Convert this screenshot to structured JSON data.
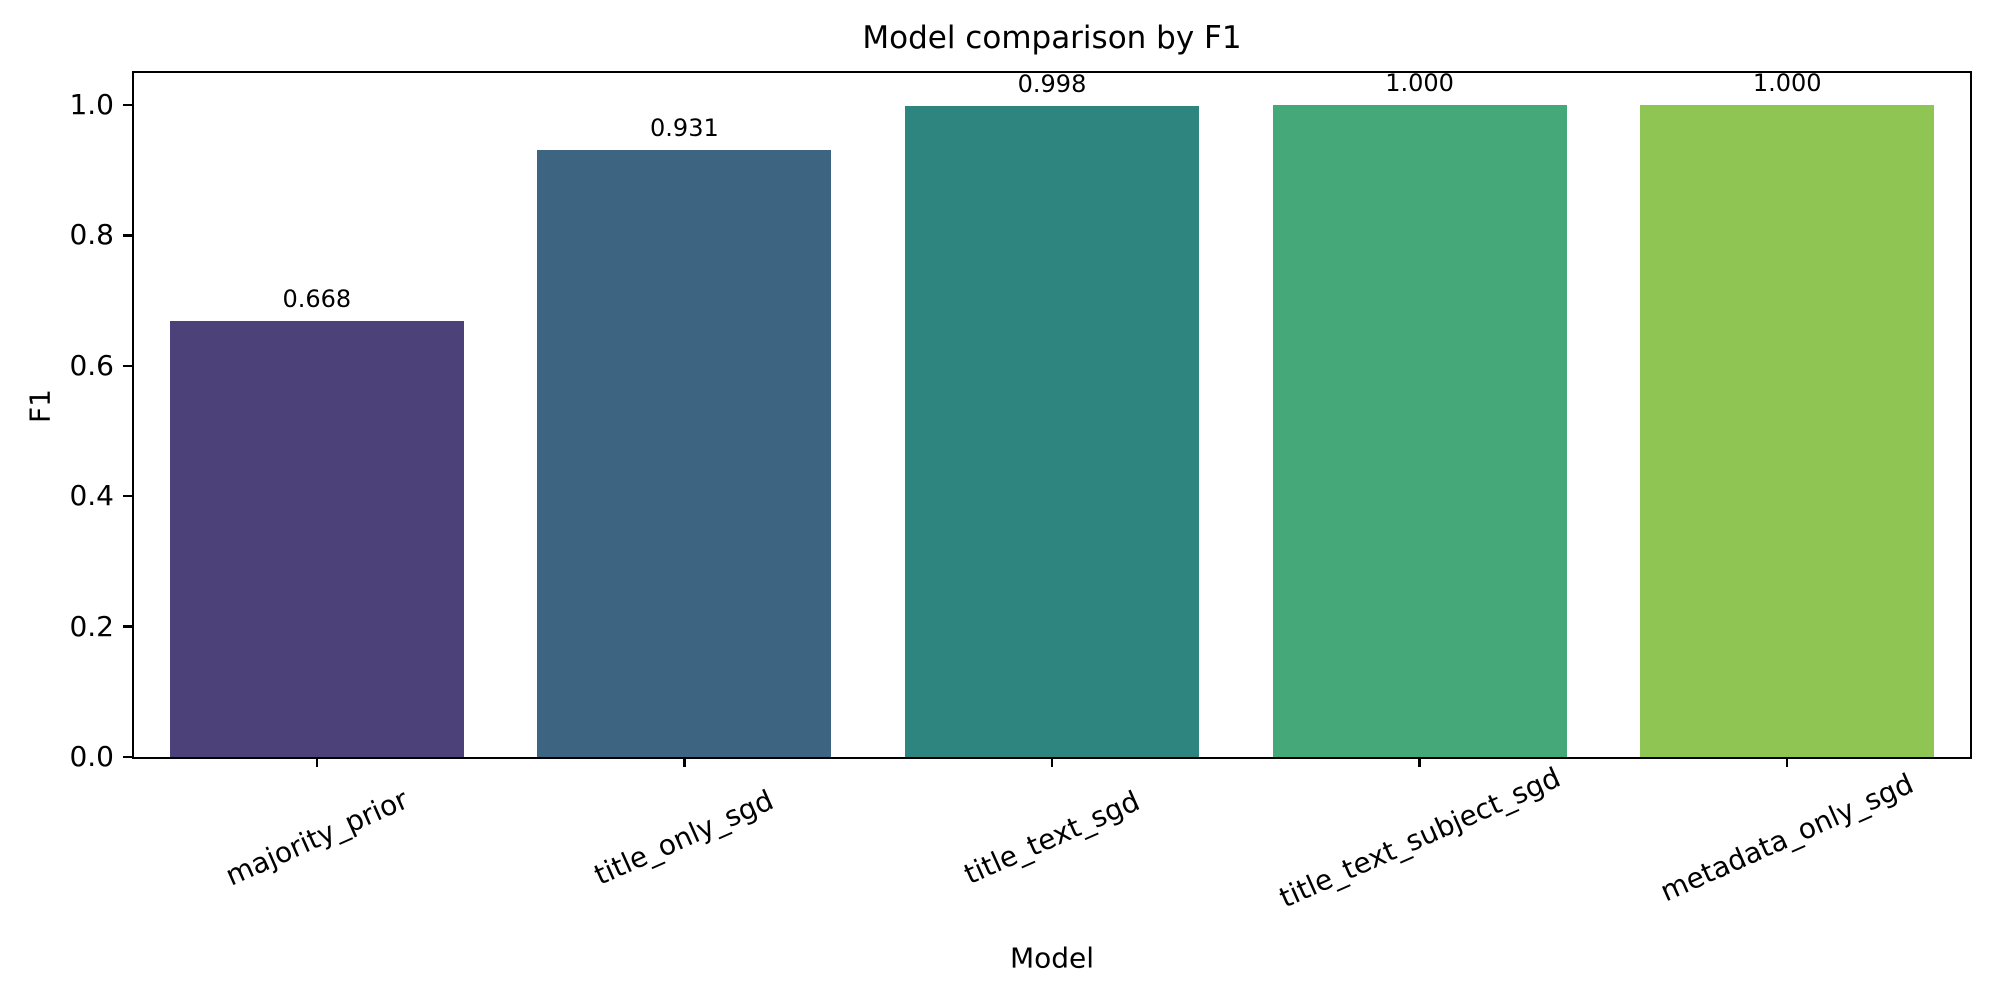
{
  "title": "Model comparison by F1",
  "chart_data": {
    "type": "bar",
    "title": "Model comparison by F1",
    "xlabel": "Model",
    "ylabel": "F1",
    "categories": [
      "majority_prior",
      "title_only_sgd",
      "title_text_sgd",
      "title_text_subject_sgd",
      "metadata_only_sgd"
    ],
    "values": [
      0.668,
      0.931,
      0.998,
      1.0,
      1.0
    ],
    "value_labels": [
      "0.668",
      "0.931",
      "0.998",
      "1.000",
      "1.000"
    ],
    "bar_colors": [
      "#4c4178",
      "#3d6480",
      "#2e857f",
      "#45a878",
      "#8fc653"
    ],
    "ytick_labels": [
      "0.0",
      "0.2",
      "0.4",
      "0.6",
      "0.8",
      "1.0"
    ],
    "ytick_values": [
      0.0,
      0.2,
      0.4,
      0.6,
      0.8,
      1.0
    ],
    "ylim": [
      0,
      1.05
    ],
    "grid": false,
    "legend_position": "none",
    "background_color": "#ffffff",
    "text_color": "#000000"
  }
}
